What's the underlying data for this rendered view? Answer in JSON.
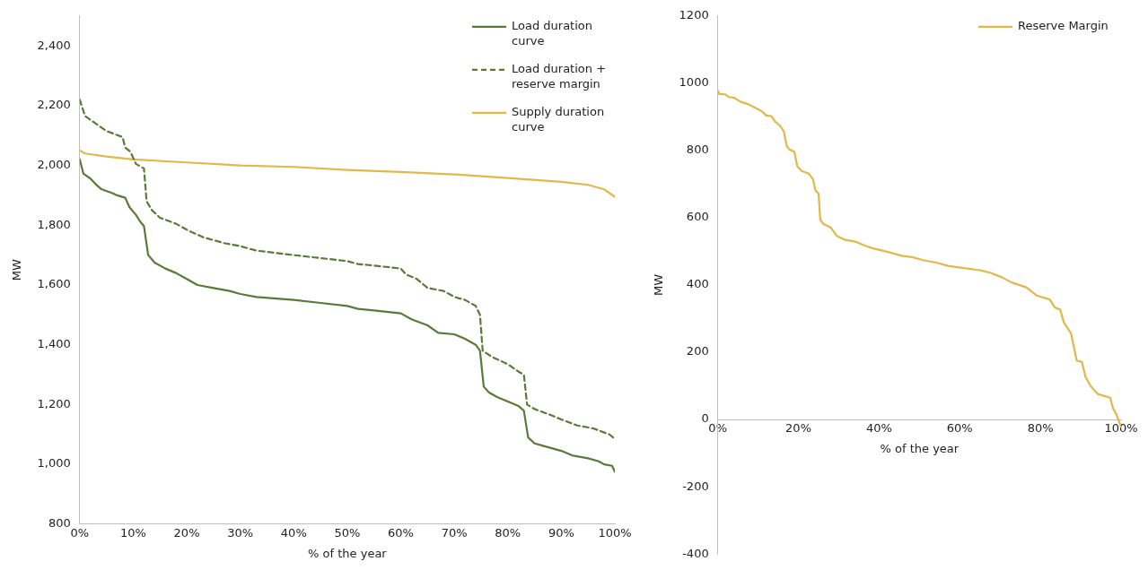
{
  "chart_data": [
    {
      "type": "line",
      "xlabel": "% of the year",
      "ylabel": "MW",
      "xlim": [
        0,
        100
      ],
      "ylim": [
        800,
        2500
      ],
      "xticks": [
        {
          "value": 0,
          "label": "0%"
        },
        {
          "value": 10,
          "label": "10%"
        },
        {
          "value": 20,
          "label": "20%"
        },
        {
          "value": 30,
          "label": "30%"
        },
        {
          "value": 40,
          "label": "40%"
        },
        {
          "value": 50,
          "label": "50%"
        },
        {
          "value": 60,
          "label": "60%"
        },
        {
          "value": 70,
          "label": "70%"
        },
        {
          "value": 80,
          "label": "80%"
        },
        {
          "value": 90,
          "label": "90%"
        },
        {
          "value": 100,
          "label": "100%"
        }
      ],
      "yticks": [
        {
          "value": 800,
          "label": "800"
        },
        {
          "value": 1000,
          "label": "1,000"
        },
        {
          "value": 1200,
          "label": "1,200"
        },
        {
          "value": 1400,
          "label": "1,400"
        },
        {
          "value": 1600,
          "label": "1,600"
        },
        {
          "value": 1800,
          "label": "1,800"
        },
        {
          "value": 2000,
          "label": "2,000"
        },
        {
          "value": 2200,
          "label": "2,200"
        },
        {
          "value": 2400,
          "label": "2,400"
        }
      ],
      "grid": false,
      "legend": "top right",
      "marker": "none",
      "series": [
        {
          "name": "Load duration curve",
          "color": "#5b7a3a",
          "line_style": "solid",
          "x": [
            0,
            0.7,
            2,
            3,
            4,
            6,
            7,
            8.5,
            9.3,
            10.5,
            11.3,
            12,
            12.8,
            14,
            16,
            18,
            20,
            22,
            25,
            28,
            30,
            33,
            40,
            45,
            50,
            52,
            55,
            60,
            62,
            65,
            67,
            70,
            72,
            74,
            74.8,
            75.5,
            76.5,
            78,
            80,
            82,
            83,
            83.8,
            85,
            87,
            90,
            92,
            95,
            97,
            98,
            99.5,
            100
          ],
          "values": [
            2020,
            1972,
            1956,
            1937,
            1921,
            1908,
            1900,
            1892,
            1860,
            1835,
            1812,
            1797,
            1700,
            1675,
            1655,
            1640,
            1620,
            1600,
            1590,
            1580,
            1570,
            1560,
            1550,
            1540,
            1530,
            1520,
            1515,
            1505,
            1485,
            1465,
            1440,
            1435,
            1420,
            1400,
            1380,
            1260,
            1240,
            1225,
            1210,
            1195,
            1180,
            1090,
            1070,
            1060,
            1045,
            1030,
            1020,
            1010,
            1000,
            995,
            975
          ]
        },
        {
          "name": "Load duration + reserve margin",
          "color": "#5b7a3a",
          "line_style": "dashed",
          "x": [
            0,
            1,
            3,
            5,
            8,
            8.5,
            9.5,
            10.5,
            12,
            12.5,
            13.5,
            15,
            18,
            20,
            23,
            27,
            30,
            33,
            40,
            45,
            50,
            52,
            55,
            60,
            61,
            63,
            65,
            68,
            70,
            72,
            74,
            74.8,
            75.3,
            77,
            80,
            82,
            83,
            83.6,
            85,
            88,
            90,
            93,
            96,
            99,
            100
          ],
          "values": [
            2220,
            2165,
            2140,
            2115,
            2095,
            2060,
            2045,
            2005,
            1990,
            1880,
            1850,
            1825,
            1805,
            1785,
            1760,
            1740,
            1730,
            1715,
            1700,
            1690,
            1680,
            1670,
            1665,
            1655,
            1635,
            1620,
            1590,
            1580,
            1560,
            1550,
            1530,
            1500,
            1380,
            1360,
            1335,
            1310,
            1300,
            1200,
            1185,
            1165,
            1150,
            1130,
            1120,
            1100,
            1085
          ]
        },
        {
          "name": "Supply duration curve",
          "color": "#e2b84a",
          "line_style": "solid",
          "x": [
            0,
            1,
            5,
            10,
            20,
            30,
            40,
            50,
            60,
            70,
            80,
            90,
            95,
            98,
            100
          ],
          "values": [
            2050,
            2040,
            2030,
            2020,
            2010,
            2000,
            1995,
            1985,
            1978,
            1970,
            1958,
            1945,
            1935,
            1920,
            1895
          ]
        }
      ]
    },
    {
      "type": "line",
      "xlabel": "% of the year",
      "ylabel": "MW",
      "xlim": [
        0,
        100
      ],
      "ylim": [
        -400,
        1200
      ],
      "xticks": [
        {
          "value": 0,
          "label": "0%"
        },
        {
          "value": 20,
          "label": "20%"
        },
        {
          "value": 40,
          "label": "40%"
        },
        {
          "value": 60,
          "label": "60%"
        },
        {
          "value": 80,
          "label": "80%"
        },
        {
          "value": 100,
          "label": "100%"
        }
      ],
      "yticks": [
        -400,
        -200,
        0,
        200,
        400,
        600,
        800,
        1000,
        1200
      ],
      "grid": false,
      "legend": "top right",
      "marker": "none",
      "series": [
        {
          "name": "Reserve Margin",
          "color": "#e2b84a",
          "line_style": "solid",
          "x": [
            0,
            0.4,
            1.8,
            2.7,
            4,
            5.8,
            7.5,
            9.3,
            11,
            12,
            13.3,
            14.2,
            15.5,
            16.4,
            17.1,
            17.7,
            19,
            19.7,
            20.8,
            22.6,
            23.6,
            24.2,
            25,
            25.4,
            26.1,
            28,
            29.6,
            31.4,
            34.1,
            36.7,
            38.5,
            42,
            45.6,
            48.2,
            50.9,
            54.4,
            57.1,
            60.6,
            65,
            67.7,
            70.4,
            73,
            76.5,
            79.2,
            82.3,
            83.6,
            84.9,
            85.8,
            87.6,
            89,
            90.3,
            91.2,
            92.5,
            94.2,
            97.3,
            98,
            98.8,
            100
          ],
          "values": [
            978,
            968,
            967,
            959,
            957,
            944,
            938,
            927,
            916,
            904,
            902,
            886,
            873,
            856,
            813,
            804,
            796,
            753,
            739,
            731,
            715,
            682,
            671,
            595,
            582,
            571,
            545,
            535,
            529,
            516,
            509,
            499,
            487,
            483,
            474,
            466,
            457,
            451,
            444,
            436,
            423,
            407,
            393,
            368,
            357,
            333,
            327,
            289,
            256,
            175,
            171,
            126,
            99,
            76,
            65,
            33,
            16,
            -22
          ]
        }
      ]
    }
  ]
}
